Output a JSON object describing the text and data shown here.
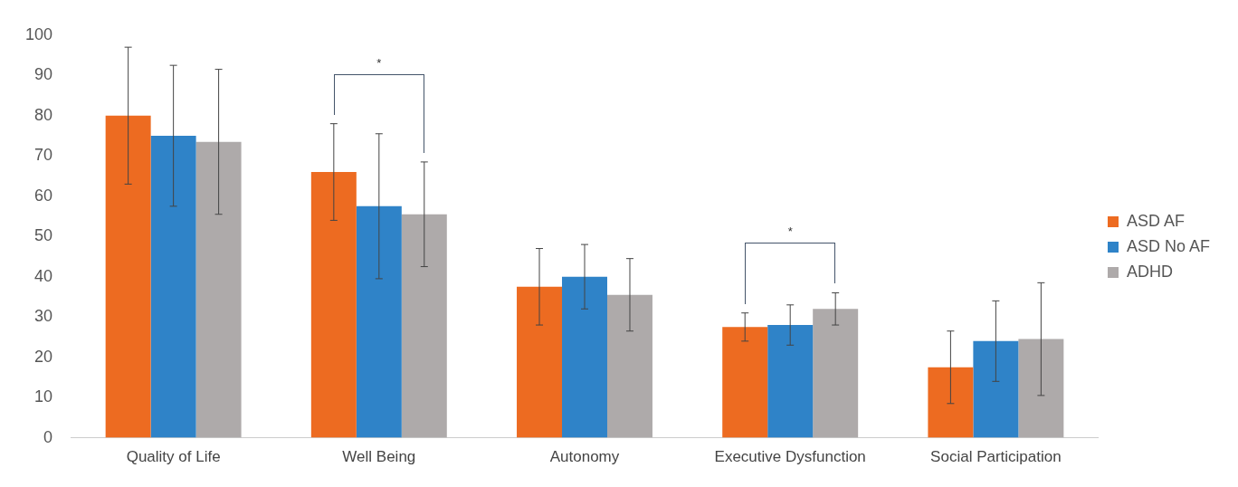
{
  "chart_data": {
    "type": "bar",
    "categories": [
      "Quality of Life",
      "Well Being",
      "Autonomy",
      "Executive Dysfunction",
      "Social Participation"
    ],
    "series": [
      {
        "name": "ASD AF",
        "color": "#ed6b21",
        "values": [
          80,
          66,
          37.5,
          27.5,
          17.5
        ],
        "errors": [
          17,
          12,
          9.5,
          3.5,
          9
        ]
      },
      {
        "name": "ASD No AF",
        "color": "#2f83c8",
        "values": [
          75,
          57.5,
          40,
          28,
          24
        ],
        "errors": [
          17.5,
          18,
          8,
          5,
          10
        ]
      },
      {
        "name": "ADHD",
        "color": "#aeaaaa",
        "values": [
          73.5,
          55.5,
          35.5,
          32,
          24.5
        ],
        "errors": [
          18,
          13,
          9,
          4,
          14
        ]
      }
    ],
    "ylim": [
      0,
      100
    ],
    "yticks": [
      0,
      10,
      20,
      30,
      40,
      50,
      60,
      70,
      80,
      90,
      100
    ],
    "grid": false,
    "legend": "right",
    "annotations": [
      "*",
      "*"
    ]
  }
}
